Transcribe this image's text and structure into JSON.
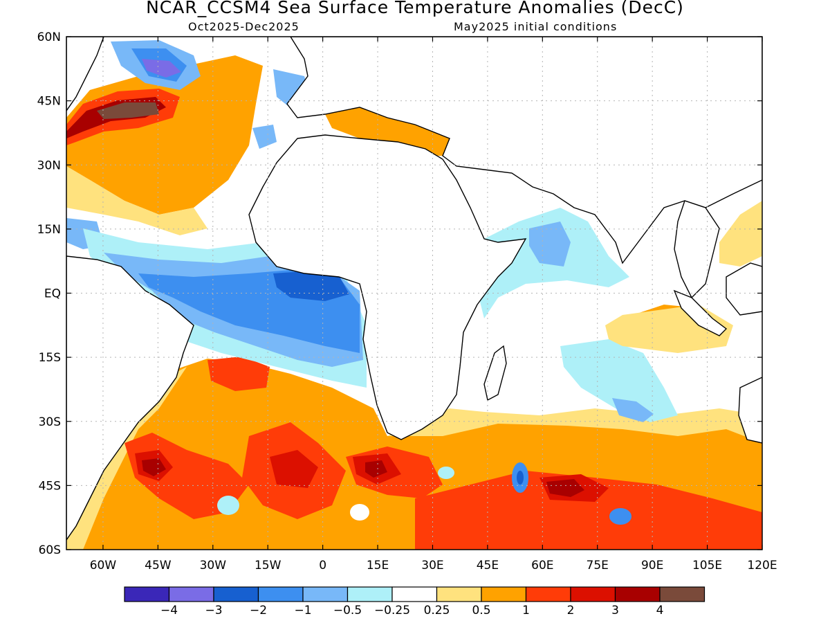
{
  "title": "NCAR_CCSM4 Sea Surface Temperature Anomalies (DecC)",
  "subtitle_left": "Oct2025-Dec2025",
  "subtitle_right": "May2025 initial conditions",
  "map": {
    "lon_ticks": [
      "60W",
      "45W",
      "30W",
      "15W",
      "0",
      "15E",
      "30E",
      "45E",
      "60E",
      "75E",
      "90E",
      "105E",
      "120E"
    ],
    "lat_ticks": [
      "60N",
      "45N",
      "30N",
      "15N",
      "EQ",
      "15S",
      "30S",
      "45S",
      "60S"
    ],
    "lon_range": [
      -70,
      120
    ],
    "lat_range": [
      -60,
      60
    ],
    "grid": "dotted"
  },
  "colorbar": {
    "labels": [
      "-4",
      "-3",
      "-2",
      "-1",
      "-0.5",
      "-0.25",
      "0.25",
      "0.5",
      "1",
      "2",
      "3",
      "4"
    ],
    "colors": [
      "#3a27b8",
      "#7a6ce6",
      "#1760d0",
      "#3d8ff0",
      "#78b8f8",
      "#aef0f8",
      "#ffffff",
      "#ffe27e",
      "#ffa200",
      "#ff3c08",
      "#dc1000",
      "#a80000",
      "#7a4a3a"
    ]
  }
}
